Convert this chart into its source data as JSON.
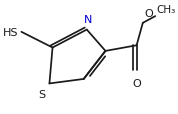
{
  "background_color": "#ffffff",
  "line_color": "#1a1a1a",
  "atom_colors": {
    "N": "#0000cd",
    "S": "#1a1a1a",
    "O": "#1a1a1a",
    "C": "#1a1a1a"
  },
  "lw": 1.25,
  "fontsize": 8.0
}
